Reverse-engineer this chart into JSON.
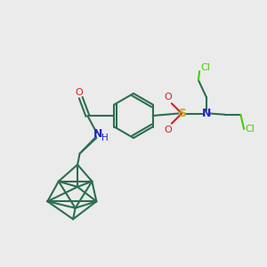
{
  "bg_color": "#ebebeb",
  "bond_color": "#2d6e50",
  "S_color": "#bbaa00",
  "N_color": "#2222cc",
  "O_color": "#cc2222",
  "Cl_color": "#44cc00",
  "line_width": 1.5,
  "figsize": [
    3.0,
    3.0
  ],
  "dpi": 100,
  "xlim": [
    0,
    12
  ],
  "ylim": [
    0,
    12
  ]
}
